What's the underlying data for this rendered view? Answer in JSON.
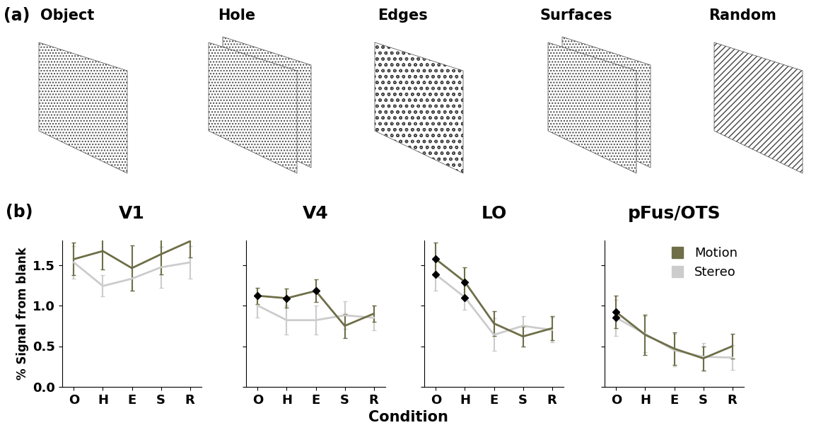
{
  "panel_a": {
    "label": "(a)",
    "stimuli": [
      "Object",
      "Hole",
      "Edges",
      "Surfaces",
      "Random"
    ]
  },
  "panel_b": {
    "label": "(b)",
    "xlabel": "Condition"
  },
  "chart_data": [
    {
      "type": "line",
      "title": "V1",
      "ylabel": "% Signal from blank",
      "categories": [
        "O",
        "H",
        "E",
        "S",
        "R"
      ],
      "ylim": [
        0,
        1.8
      ],
      "yticks": [
        {
          "value": 0,
          "label": "0.0"
        },
        {
          "value": 0.5,
          "label": "0.5"
        },
        {
          "value": 1,
          "label": "1.0"
        },
        {
          "value": 1.5,
          "label": "1.5"
        }
      ],
      "series": [
        {
          "name": "Motion",
          "color": "#6e6e48",
          "values": [
            1.57,
            1.67,
            1.46,
            1.63,
            1.79
          ],
          "errors": [
            0.2,
            0.23,
            0.28,
            0.25,
            0.2
          ],
          "significant": [
            false,
            false,
            false,
            false,
            false
          ]
        },
        {
          "name": "Stereo",
          "color": "#cccccc",
          "values": [
            1.53,
            1.24,
            1.33,
            1.47,
            1.53
          ],
          "errors": [
            0.2,
            0.13,
            0.15,
            0.25,
            0.2
          ],
          "significant": [
            false,
            false,
            false,
            false,
            false
          ]
        }
      ]
    },
    {
      "type": "line",
      "title": "V4",
      "tick_labels": "x",
      "categories": [
        "O",
        "H",
        "E",
        "S",
        "R"
      ],
      "ylim": [
        0,
        1.8
      ],
      "yticks": [
        {
          "value": 0,
          "label": "0.0"
        },
        {
          "value": 0.5,
          "label": "0.5"
        },
        {
          "value": 1,
          "label": "1.0"
        },
        {
          "value": 1.5,
          "label": "1.5"
        }
      ],
      "series": [
        {
          "name": "Motion",
          "color": "#6e6e48",
          "values": [
            1.12,
            1.09,
            1.18,
            0.75,
            0.9
          ],
          "errors": [
            0.1,
            0.12,
            0.14,
            0.15,
            0.1
          ],
          "significant": [
            true,
            true,
            true,
            false,
            false
          ]
        },
        {
          "name": "Stereo",
          "color": "#cccccc",
          "values": [
            1.0,
            0.82,
            0.82,
            0.88,
            0.85
          ],
          "errors": [
            0.15,
            0.18,
            0.18,
            0.17,
            0.15
          ],
          "significant": [
            false,
            false,
            false,
            false,
            false
          ]
        }
      ]
    },
    {
      "type": "line",
      "title": "LO",
      "tick_labels": "x",
      "categories": [
        "O",
        "H",
        "E",
        "S",
        "R"
      ],
      "ylim": [
        0,
        1.8
      ],
      "yticks": [
        {
          "value": 0,
          "label": "0.0"
        },
        {
          "value": 0.5,
          "label": "0.5"
        },
        {
          "value": 1,
          "label": "1.0"
        },
        {
          "value": 1.5,
          "label": "1.5"
        }
      ],
      "series": [
        {
          "name": "Motion",
          "color": "#6e6e48",
          "values": [
            1.57,
            1.29,
            0.78,
            0.62,
            0.72
          ],
          "errors": [
            0.2,
            0.18,
            0.15,
            0.12,
            0.15
          ],
          "significant": [
            true,
            true,
            false,
            false,
            false
          ]
        },
        {
          "name": "Stereo",
          "color": "#cccccc",
          "values": [
            1.38,
            1.1,
            0.64,
            0.75,
            0.7
          ],
          "errors": [
            0.2,
            0.15,
            0.2,
            0.12,
            0.15
          ],
          "significant": [
            true,
            true,
            false,
            false,
            false
          ]
        }
      ]
    },
    {
      "type": "line",
      "title": "pFus/OTS",
      "tick_labels": "x",
      "legend": "upper right",
      "categories": [
        "O",
        "H",
        "E",
        "S",
        "R"
      ],
      "ylim": [
        0,
        1.8
      ],
      "yticks": [
        {
          "value": 0,
          "label": "0.0"
        },
        {
          "value": 0.5,
          "label": "0.5"
        },
        {
          "value": 1,
          "label": "1.0"
        },
        {
          "value": 1.5,
          "label": "1.5"
        }
      ],
      "series": [
        {
          "name": "Motion",
          "color": "#6e6e48",
          "values": [
            0.92,
            0.64,
            0.47,
            0.35,
            0.5
          ],
          "errors": [
            0.2,
            0.25,
            0.2,
            0.15,
            0.15
          ],
          "significant": [
            true,
            false,
            false,
            false,
            false
          ]
        },
        {
          "name": "Stereo",
          "color": "#cccccc",
          "values": [
            0.85,
            0.65,
            0.45,
            0.37,
            0.36
          ],
          "errors": [
            0.22,
            0.22,
            0.2,
            0.17,
            0.15
          ],
          "significant": [
            true,
            false,
            false,
            false,
            false
          ]
        }
      ]
    }
  ]
}
